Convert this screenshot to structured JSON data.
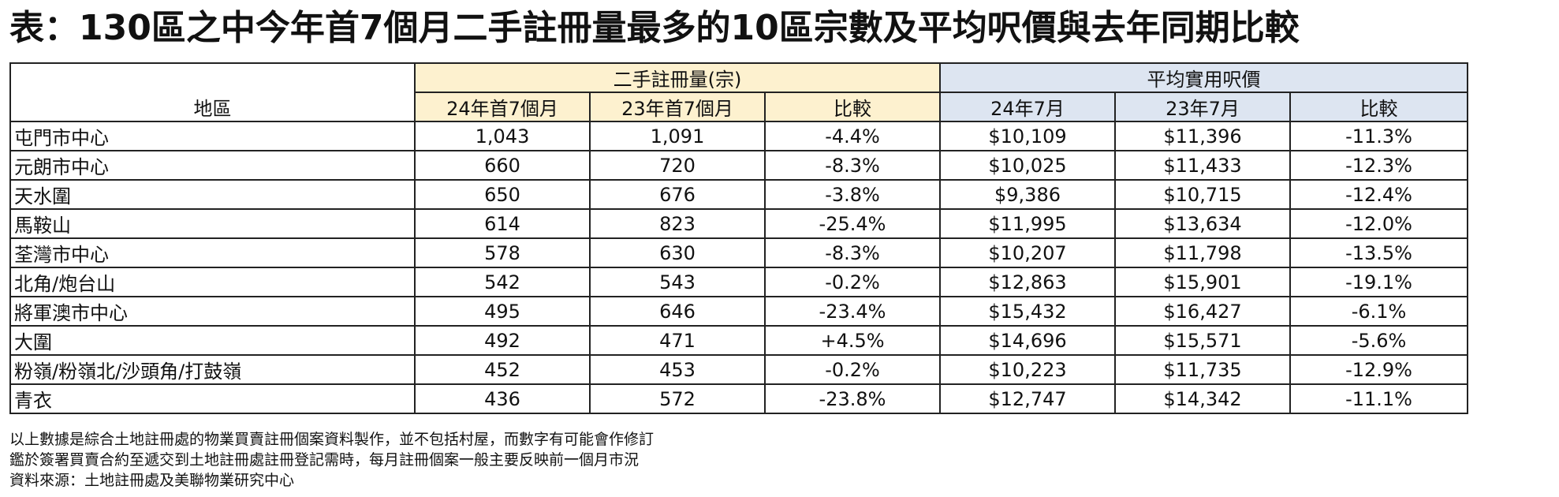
{
  "title": "表：130區之中今年首7個月二手註冊量最多的10區宗數及平均呎價與去年同期比較",
  "chart_data": {
    "type": "table",
    "group_headers": [
      "二手註冊量(宗)",
      "平均實用呎價"
    ],
    "area_header": "地區",
    "columns": [
      "24年首7個月",
      "23年首7個月",
      "比較",
      "24年7月",
      "23年7月",
      "比較"
    ],
    "rows": [
      {
        "area": "屯門市中心",
        "units_2024": "1,043",
        "units_2023": "1,091",
        "units_change": "-4.4%",
        "price_2024": "$10,109",
        "price_2023": "$11,396",
        "price_change": "-11.3%"
      },
      {
        "area": "元朗市中心",
        "units_2024": "660",
        "units_2023": "720",
        "units_change": "-8.3%",
        "price_2024": "$10,025",
        "price_2023": "$11,433",
        "price_change": "-12.3%"
      },
      {
        "area": "天水圍",
        "units_2024": "650",
        "units_2023": "676",
        "units_change": "-3.8%",
        "price_2024": "$9,386",
        "price_2023": "$10,715",
        "price_change": "-12.4%"
      },
      {
        "area": "馬鞍山",
        "units_2024": "614",
        "units_2023": "823",
        "units_change": "-25.4%",
        "price_2024": "$11,995",
        "price_2023": "$13,634",
        "price_change": "-12.0%"
      },
      {
        "area": "荃灣市中心",
        "units_2024": "578",
        "units_2023": "630",
        "units_change": "-8.3%",
        "price_2024": "$10,207",
        "price_2023": "$11,798",
        "price_change": "-13.5%"
      },
      {
        "area": "北角/炮台山",
        "units_2024": "542",
        "units_2023": "543",
        "units_change": "-0.2%",
        "price_2024": "$12,863",
        "price_2023": "$15,901",
        "price_change": "-19.1%"
      },
      {
        "area": "將軍澳市中心",
        "units_2024": "495",
        "units_2023": "646",
        "units_change": "-23.4%",
        "price_2024": "$15,432",
        "price_2023": "$16,427",
        "price_change": "-6.1%"
      },
      {
        "area": "大圍",
        "units_2024": "492",
        "units_2023": "471",
        "units_change": "+4.5%",
        "price_2024": "$14,696",
        "price_2023": "$15,571",
        "price_change": "-5.6%"
      },
      {
        "area": "粉嶺/粉嶺北/沙頭角/打鼓嶺",
        "units_2024": "452",
        "units_2023": "453",
        "units_change": "-0.2%",
        "price_2024": "$10,223",
        "price_2023": "$11,735",
        "price_change": "-12.9%"
      },
      {
        "area": "青衣",
        "units_2024": "436",
        "units_2023": "572",
        "units_change": "-23.8%",
        "price_2024": "$12,747",
        "price_2023": "$14,342",
        "price_change": "-11.1%"
      }
    ]
  },
  "notes": [
    "以上數據是綜合土地註冊處的物業買賣註冊個案資料製作，並不包括村屋，而數字有可能會作修訂",
    "鑑於簽署買賣合約至遞交到土地註冊處註冊登記需時，每月註冊個案一般主要反映前一個月市況",
    "資料來源：土地註冊處及美聯物業研究中心"
  ],
  "colors": {
    "units_header_bg": "#fdf1cf",
    "price_header_bg": "#dde5f1",
    "border": "#222222"
  }
}
